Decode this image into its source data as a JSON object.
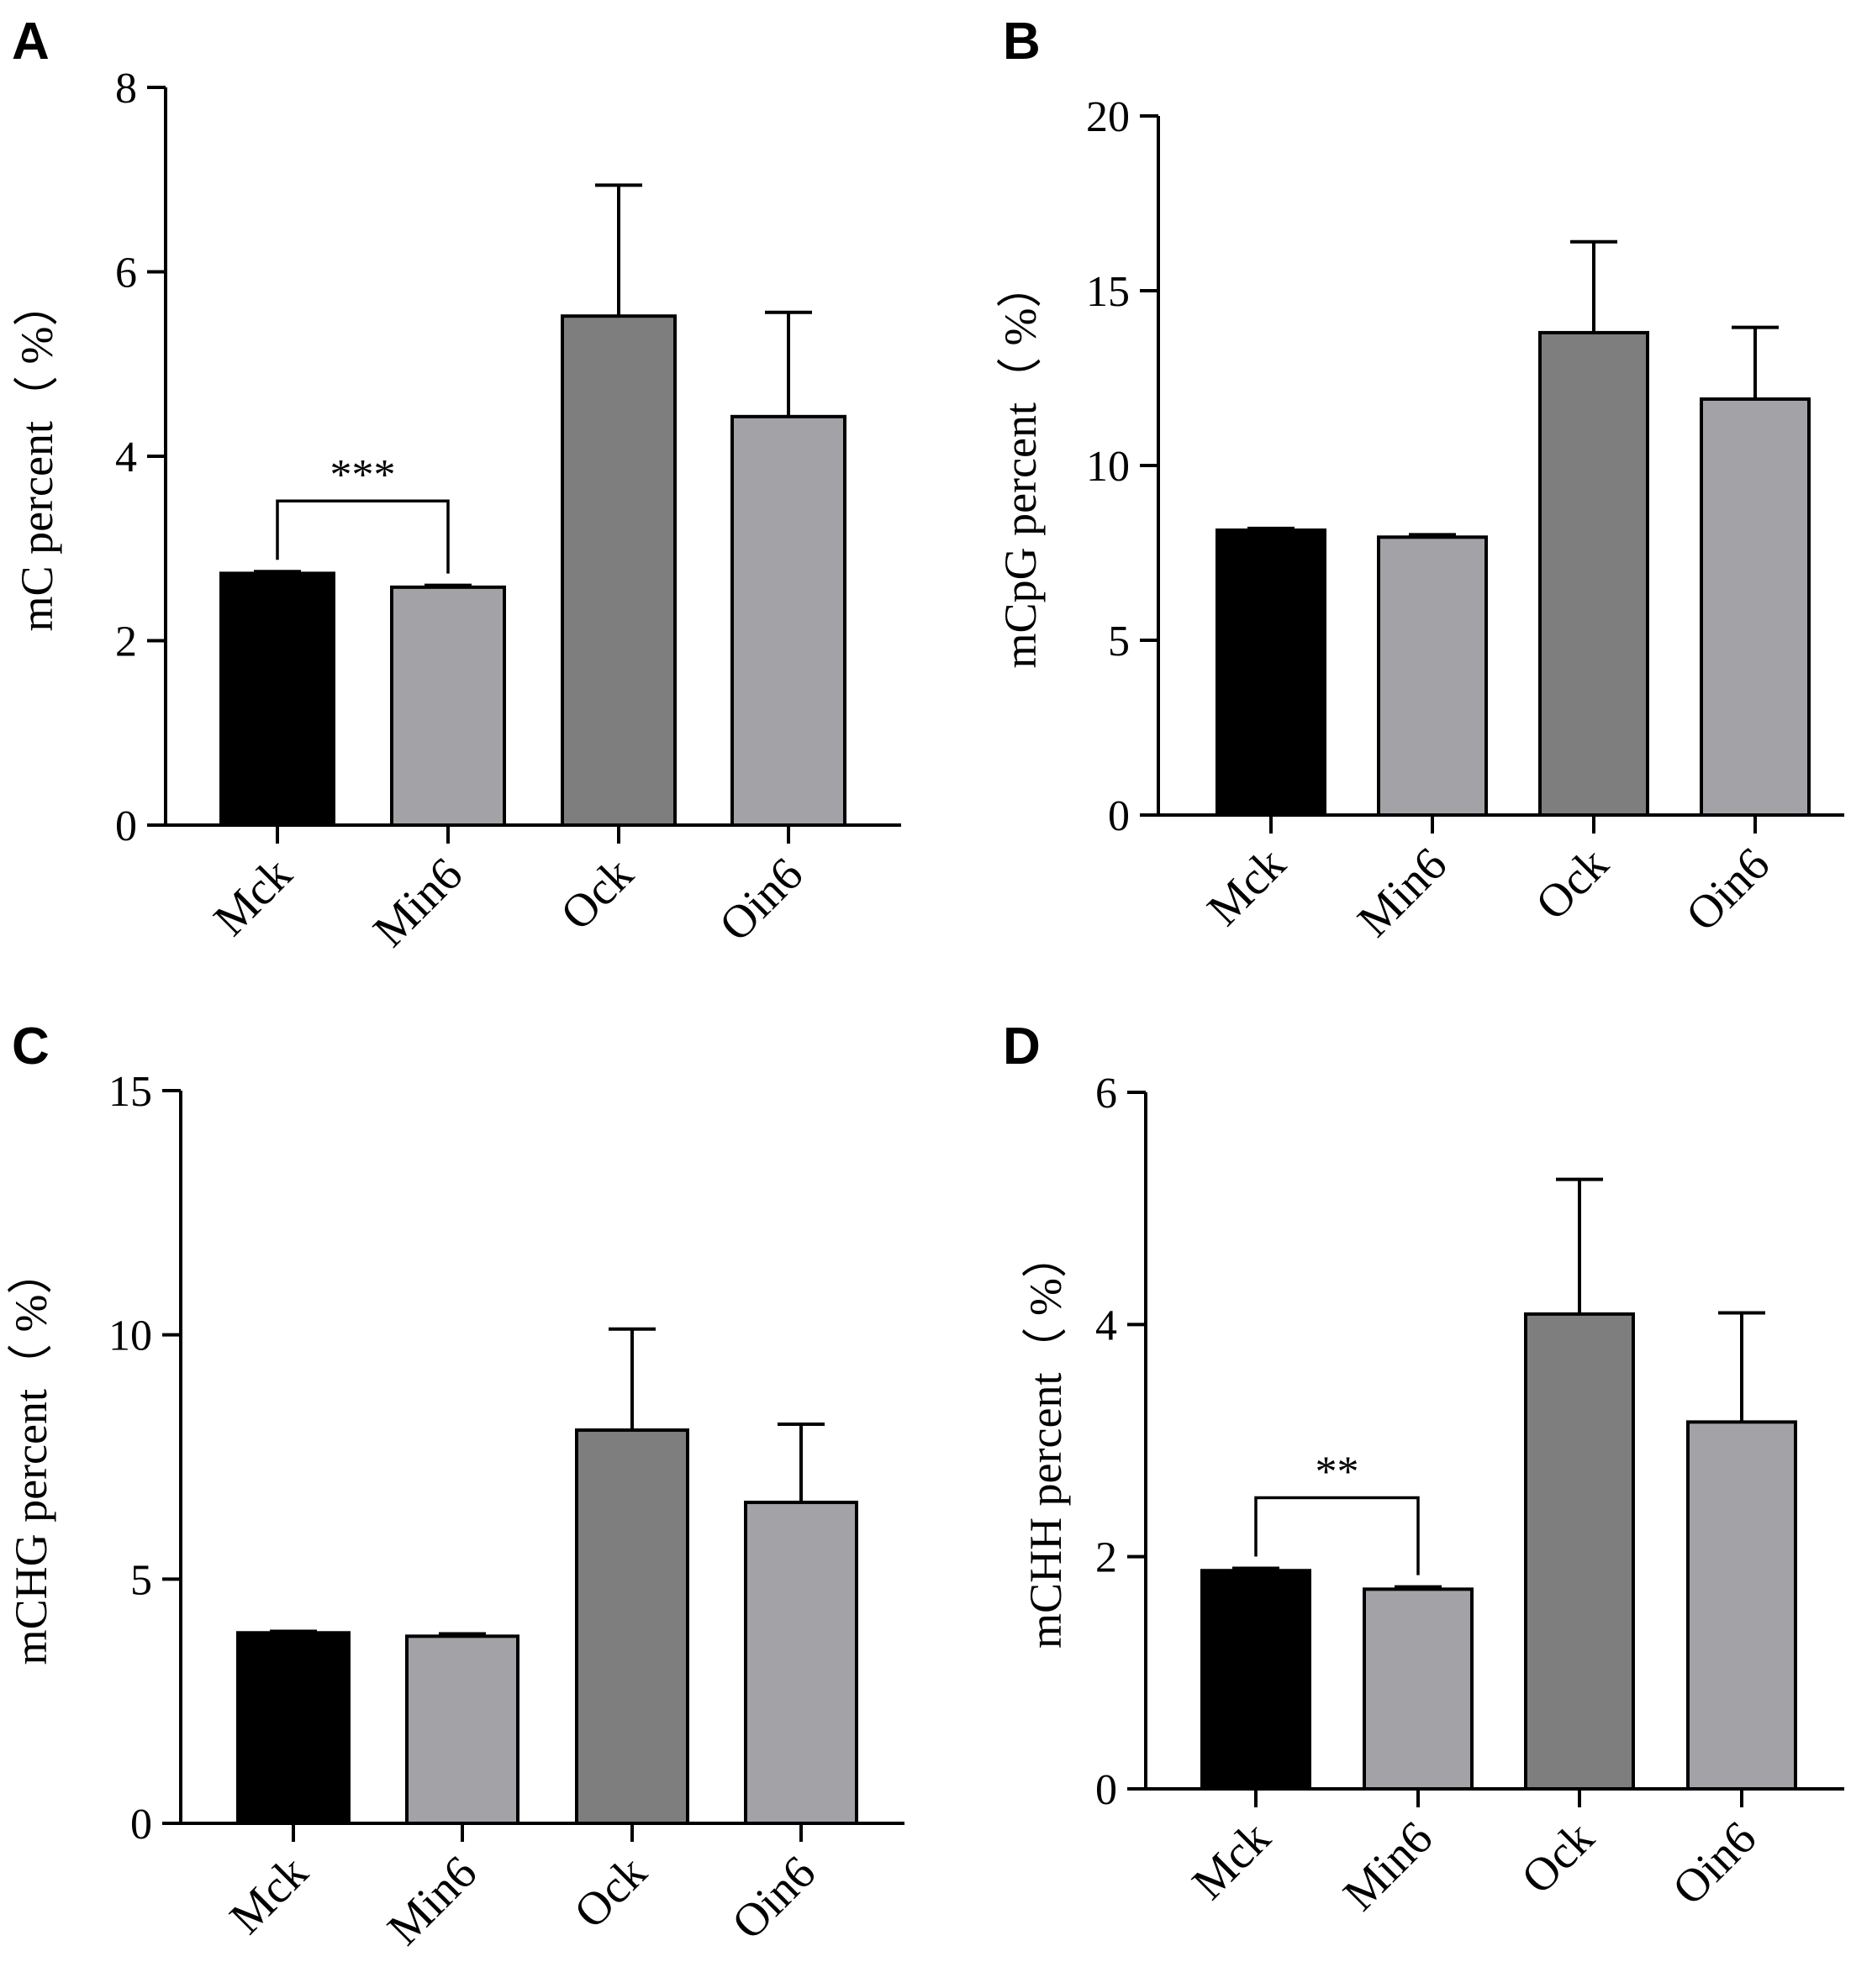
{
  "colors": {
    "Mck": "#000000",
    "Min6": "#a3a3a7",
    "Ock": "#7e7e7e",
    "Oin6": "#a3a3a7"
  },
  "chart_data": [
    {
      "panel": "A",
      "type": "bar",
      "ylabel": "mC percent（ %）",
      "categories": [
        "Mck",
        "Min6",
        "Ock",
        "Oin6"
      ],
      "values": [
        2.73,
        2.58,
        5.52,
        4.43
      ],
      "error": [
        0.02,
        0.02,
        1.42,
        1.13
      ],
      "ylim": [
        0,
        8
      ],
      "yticks": [
        0,
        2,
        4,
        6,
        8
      ],
      "significance": {
        "from": 0,
        "to": 1,
        "label": "***"
      }
    },
    {
      "panel": "B",
      "type": "bar",
      "ylabel": "mCpG percent（ %）",
      "categories": [
        "Mck",
        "Min6",
        "Ock",
        "Oin6"
      ],
      "values": [
        8.15,
        7.95,
        13.8,
        11.9
      ],
      "error": [
        0.05,
        0.07,
        2.6,
        2.05
      ],
      "ylim": [
        0,
        20
      ],
      "yticks": [
        0,
        5,
        10,
        15,
        20
      ]
    },
    {
      "panel": "C",
      "type": "bar",
      "ylabel": "mCHG percent（ %）",
      "categories": [
        "Mck",
        "Min6",
        "Ock",
        "Oin6"
      ],
      "values": [
        3.9,
        3.83,
        8.05,
        6.57
      ],
      "error": [
        0.03,
        0.05,
        2.07,
        1.6
      ],
      "ylim": [
        0,
        15
      ],
      "yticks": [
        0,
        5,
        10,
        15
      ]
    },
    {
      "panel": "D",
      "type": "bar",
      "ylabel": "mCHH percent（ %）",
      "categories": [
        "Mck",
        "Min6",
        "Ock",
        "Oin6"
      ],
      "values": [
        1.88,
        1.72,
        4.09,
        3.16
      ],
      "error": [
        0.02,
        0.02,
        1.16,
        0.94
      ],
      "ylim": [
        0,
        6
      ],
      "yticks": [
        0,
        2,
        4,
        6
      ],
      "significance": {
        "from": 0,
        "to": 1,
        "label": "**"
      }
    }
  ]
}
